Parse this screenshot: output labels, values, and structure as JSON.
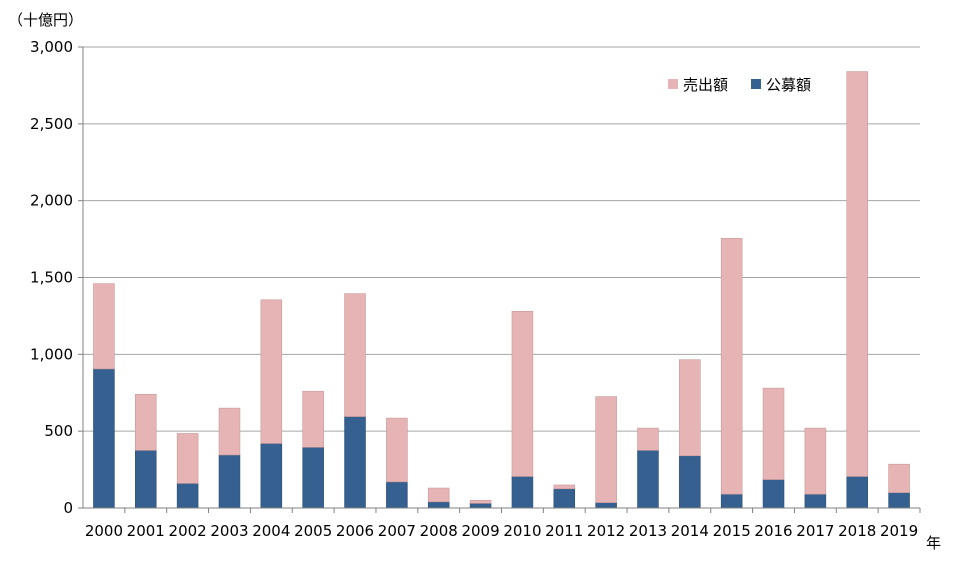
{
  "chart_data": {
    "type": "bar",
    "stacked": true,
    "ylabel": "（十億円）",
    "xlabel": "年",
    "ylim": [
      0,
      3000
    ],
    "yticks": [
      0,
      500,
      1000,
      1500,
      2000,
      2500,
      3000
    ],
    "ytick_labels": [
      "0",
      "500",
      "1,000",
      "1,500",
      "2,000",
      "2,500",
      "3,000"
    ],
    "grid": true,
    "legend_position": "top-right",
    "categories": [
      "2000",
      "2001",
      "2002",
      "2003",
      "2004",
      "2005",
      "2006",
      "2007",
      "2008",
      "2009",
      "2010",
      "2011",
      "2012",
      "2013",
      "2014",
      "2015",
      "2016",
      "2017",
      "2018",
      "2019"
    ],
    "series": [
      {
        "name": "公募額",
        "color": "#35608f",
        "values": [
          905,
          375,
          160,
          345,
          420,
          395,
          595,
          170,
          40,
          30,
          205,
          125,
          35,
          375,
          340,
          90,
          185,
          90,
          205,
          100
        ]
      },
      {
        "name": "売出額",
        "color": "#e6b4b4",
        "values": [
          555,
          365,
          325,
          305,
          935,
          365,
          800,
          415,
          90,
          20,
          1075,
          25,
          690,
          145,
          625,
          1665,
          595,
          430,
          2635,
          185
        ]
      }
    ],
    "legend_order": [
      "売出額",
      "公募額"
    ]
  }
}
